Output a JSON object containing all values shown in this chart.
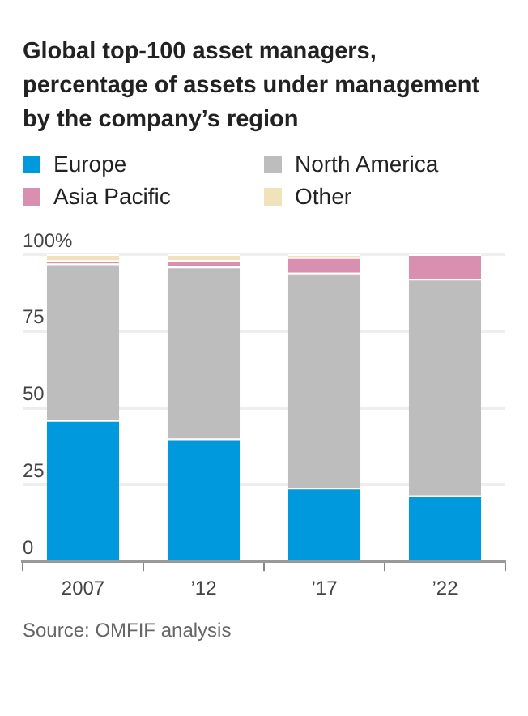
{
  "chart_data": {
    "type": "bar",
    "title": "Global top-100 asset managers, percentage of assets under management by the company’s region",
    "categories": [
      "2007",
      "’12",
      "’17",
      "’22"
    ],
    "series": [
      {
        "name": "Europe",
        "color": "#0099dd",
        "values": [
          46,
          40,
          24,
          21.5
        ]
      },
      {
        "name": "North America",
        "color": "#bdbdbd",
        "values": [
          51,
          56,
          70,
          70.5
        ]
      },
      {
        "name": "Asia Pacific",
        "color": "#d98fb0",
        "values": [
          1,
          2,
          5,
          8
        ]
      },
      {
        "name": "Other",
        "color": "#f0e2bb",
        "values": [
          2,
          2,
          1,
          0
        ]
      }
    ],
    "stacked": true,
    "ylim": [
      0,
      100
    ],
    "yticks": [
      0,
      25,
      50,
      75,
      {
        "value": 100,
        "label": "100%"
      }
    ],
    "grid": "y",
    "legend": "top",
    "annotations": [
      "Source: OMFIF analysis"
    ]
  }
}
